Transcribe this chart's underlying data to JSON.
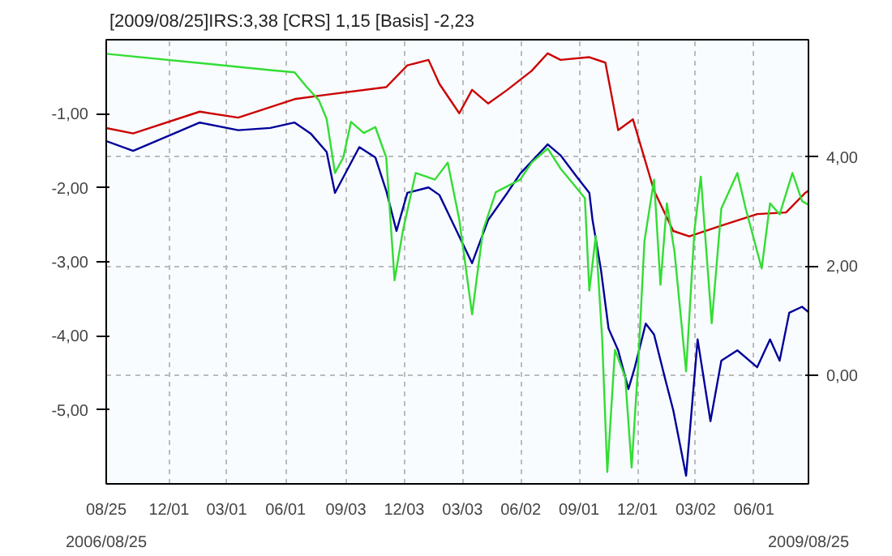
{
  "chart_data": {
    "type": "line",
    "title": "[2009/08/25]IRS:3,38 [CRS] 1,15 [Basis] -2,23",
    "annotations": [
      "2006/08/25",
      "2009/08/25"
    ],
    "xlim": [
      "2006-08-25",
      "2009-08-25"
    ],
    "xticks": [
      {
        "value": "2006-08-25",
        "label": "08/25"
      },
      {
        "value": "2006-12-01",
        "label": "12/01"
      },
      {
        "value": "2007-03-01",
        "label": "03/01"
      },
      {
        "value": "2007-06-01",
        "label": "06/01"
      },
      {
        "value": "2007-09-03",
        "label": "09/03"
      },
      {
        "value": "2007-12-03",
        "label": "12/03"
      },
      {
        "value": "2008-03-03",
        "label": "03/03"
      },
      {
        "value": "2008-06-02",
        "label": "06/02"
      },
      {
        "value": "2008-09-01",
        "label": "09/01"
      },
      {
        "value": "2008-12-01",
        "label": "12/01"
      },
      {
        "value": "2009-03-02",
        "label": "03/02"
      },
      {
        "value": "2009-06-01",
        "label": "06/01"
      },
      {
        "value": "2009-08-25",
        "label": null
      }
    ],
    "ylim": [
      -6.0,
      0.0
    ],
    "yticks": [
      {
        "value": -1,
        "label": "-1,00"
      },
      {
        "value": -2,
        "label": "-2,00"
      },
      {
        "value": -3,
        "label": "-3,00"
      },
      {
        "value": -4,
        "label": "-4,00"
      },
      {
        "value": -5,
        "label": "-5,00"
      }
    ],
    "y2lim": [
      -2.0,
      6.15
    ],
    "y2ticks": [
      {
        "value": 0,
        "label": "0,00"
      },
      {
        "value": 2,
        "label": "2,00"
      },
      {
        "value": 4,
        "label": "4,00"
      }
    ],
    "grid": true,
    "series": [
      {
        "color": "#cc0000",
        "axis": "y2",
        "x": [
          "2006-08-25",
          "2006-10-06",
          "2007-01-18",
          "2007-03-19",
          "2007-06-15",
          "2007-08-04",
          "2007-11-05",
          "2007-12-08",
          "2008-01-10",
          "2008-01-27",
          "2008-02-27",
          "2008-03-18",
          "2008-04-12",
          "2008-05-12",
          "2008-06-19",
          "2008-07-14",
          "2008-08-03",
          "2008-09-17",
          "2008-10-12",
          "2008-11-01",
          "2008-11-24",
          "2008-12-27",
          "2009-01-26",
          "2009-02-20",
          "2009-04-11",
          "2009-06-06",
          "2009-07-21",
          "2009-08-20",
          "2009-08-25"
        ],
        "values": [
          4.53,
          4.43,
          4.83,
          4.72,
          5.06,
          5.14,
          5.28,
          5.68,
          5.78,
          5.34,
          4.8,
          5.23,
          4.98,
          5.23,
          5.58,
          5.9,
          5.78,
          5.83,
          5.73,
          4.49,
          4.69,
          3.38,
          2.64,
          2.54,
          2.74,
          2.95,
          2.98,
          3.34,
          3.38
        ]
      },
      {
        "color": "#000099",
        "axis": "y2",
        "x": [
          "2006-08-25",
          "2006-10-06",
          "2006-12-09",
          "2007-01-18",
          "2007-03-19",
          "2007-05-08",
          "2007-06-15",
          "2007-07-10",
          "2007-08-04",
          "2007-08-17",
          "2007-09-24",
          "2007-10-19",
          "2007-11-05",
          "2007-11-21",
          "2007-12-08",
          "2008-01-10",
          "2008-01-27",
          "2008-02-27",
          "2008-03-18",
          "2008-04-12",
          "2008-05-12",
          "2008-06-01",
          "2008-07-14",
          "2008-08-03",
          "2008-08-28",
          "2008-09-17",
          "2008-09-22",
          "2008-10-05",
          "2008-10-17",
          "2008-11-01",
          "2008-11-17",
          "2008-11-27",
          "2008-12-14",
          "2008-12-27",
          "2009-01-13",
          "2009-01-26",
          "2009-02-15",
          "2009-03-05",
          "2009-03-25",
          "2009-04-11",
          "2009-05-06",
          "2009-06-06",
          "2009-06-26",
          "2009-07-11",
          "2009-07-26",
          "2009-08-15",
          "2009-08-25"
        ],
        "values": [
          4.29,
          4.11,
          4.43,
          4.63,
          4.49,
          4.53,
          4.63,
          4.43,
          4.09,
          3.34,
          4.18,
          3.99,
          3.38,
          2.64,
          3.34,
          3.44,
          3.3,
          2.54,
          2.05,
          2.84,
          3.34,
          3.69,
          4.23,
          4.03,
          3.64,
          3.34,
          2.84,
          1.94,
          0.85,
          0.45,
          -0.26,
          0.14,
          0.94,
          0.74,
          -0.06,
          -0.65,
          -1.85,
          0.65,
          -0.85,
          0.26,
          0.45,
          0.14,
          0.65,
          0.26,
          1.14,
          1.25,
          1.15
        ]
      },
      {
        "color": "#33dd33",
        "x": [
          "2006-08-25",
          "2007-05-08",
          "2007-06-15",
          "2007-07-03",
          "2007-07-23",
          "2007-08-04",
          "2007-08-17",
          "2007-08-30",
          "2007-09-11",
          "2007-10-01",
          "2007-10-19",
          "2007-11-05",
          "2007-11-18",
          "2007-12-01",
          "2007-12-21",
          "2008-01-20",
          "2008-02-09",
          "2008-02-27",
          "2008-03-18",
          "2008-04-04",
          "2008-04-24",
          "2008-06-01",
          "2008-06-19",
          "2008-07-14",
          "2008-08-03",
          "2008-08-23",
          "2008-09-10",
          "2008-09-17",
          "2008-09-27",
          "2008-10-07",
          "2008-10-15",
          "2008-10-27",
          "2008-11-12",
          "2008-11-22",
          "2008-12-02",
          "2008-12-12",
          "2008-12-27",
          "2009-01-06",
          "2009-01-16",
          "2009-01-28",
          "2009-02-15",
          "2009-02-28",
          "2009-03-10",
          "2009-03-27",
          "2009-04-11",
          "2009-05-06",
          "2009-05-19",
          "2009-06-13",
          "2009-06-26",
          "2009-07-11",
          "2009-07-31",
          "2009-08-15",
          "2009-08-25"
        ],
        "values": [
          -0.19,
          -0.41,
          -0.44,
          -0.63,
          -0.82,
          -1.07,
          -1.8,
          -1.59,
          -1.11,
          -1.26,
          -1.18,
          -1.59,
          -3.25,
          -2.58,
          -1.8,
          -1.89,
          -1.66,
          -2.43,
          -3.71,
          -2.58,
          -2.06,
          -1.89,
          -1.66,
          -1.47,
          -1.74,
          -1.95,
          -2.14,
          -3.39,
          -2.65,
          -4.04,
          -5.84,
          -4.19,
          -4.56,
          -5.78,
          -4.42,
          -2.72,
          -1.89,
          -3.31,
          -2.21,
          -2.87,
          -4.48,
          -2.58,
          -1.85,
          -3.83,
          -2.28,
          -1.8,
          -2.28,
          -3.09,
          -2.21,
          -2.36,
          -1.8,
          -2.18,
          -2.23
        ]
      }
    ]
  }
}
